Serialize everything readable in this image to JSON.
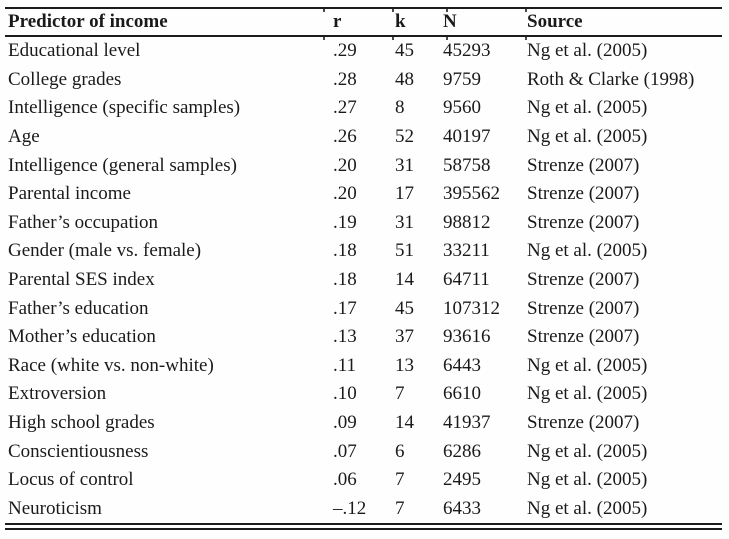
{
  "page": {
    "background": "#fefefe",
    "text_color": "#1a1a1a",
    "rule_color": "#1c1c1c"
  },
  "table": {
    "columns": [
      "Predictor of income",
      "r",
      "k",
      "N",
      "Source"
    ],
    "rows": [
      {
        "predictor": "Educational level",
        "r": ".29",
        "k": "45",
        "n": "45293",
        "source": "Ng et al. (2005)"
      },
      {
        "predictor": "College grades",
        "r": ".28",
        "k": "48",
        "n": "9759",
        "source": "Roth & Clarke (1998)"
      },
      {
        "predictor": "Intelligence (specific samples)",
        "r": ".27",
        "k": "8",
        "n": "9560",
        "source": "Ng et al. (2005)"
      },
      {
        "predictor": "Age",
        "r": ".26",
        "k": "52",
        "n": "40197",
        "source": "Ng et al. (2005)"
      },
      {
        "predictor": "Intelligence (general samples)",
        "r": ".20",
        "k": "31",
        "n": "58758",
        "source": "Strenze (2007)"
      },
      {
        "predictor": "Parental income",
        "r": ".20",
        "k": "17",
        "n": "395562",
        "source": "Strenze (2007)"
      },
      {
        "predictor": "Father’s occupation",
        "r": ".19",
        "k": "31",
        "n": "98812",
        "source": "Strenze (2007)"
      },
      {
        "predictor": "Gender (male vs. female)",
        "r": ".18",
        "k": "51",
        "n": "33211",
        "source": "Ng et al. (2005)"
      },
      {
        "predictor": "Parental SES index",
        "r": ".18",
        "k": "14",
        "n": "64711",
        "source": "Strenze (2007)"
      },
      {
        "predictor": "Father’s education",
        "r": ".17",
        "k": "45",
        "n": "107312",
        "source": "Strenze (2007)"
      },
      {
        "predictor": "Mother’s education",
        "r": ".13",
        "k": "37",
        "n": "93616",
        "source": "Strenze (2007)"
      },
      {
        "predictor": "Race (white vs. non-white)",
        "r": ".11",
        "k": "13",
        "n": "6443",
        "source": "Ng et al. (2005)"
      },
      {
        "predictor": "Extroversion",
        "r": ".10",
        "k": "7",
        "n": "6610",
        "source": "Ng et al. (2005)"
      },
      {
        "predictor": "High school grades",
        "r": ".09",
        "k": "14",
        "n": "41937",
        "source": "Strenze (2007)"
      },
      {
        "predictor": "Conscientiousness",
        "r": ".07",
        "k": "6",
        "n": "6286",
        "source": "Ng et al. (2005)"
      },
      {
        "predictor": "Locus of control",
        "r": ".06",
        "k": "7",
        "n": "2495",
        "source": "Ng et al. (2005)"
      },
      {
        "predictor": "Neuroticism",
        "r": "–.12",
        "k": "7",
        "n": "6433",
        "source": "Ng et al. (2005)"
      }
    ]
  }
}
